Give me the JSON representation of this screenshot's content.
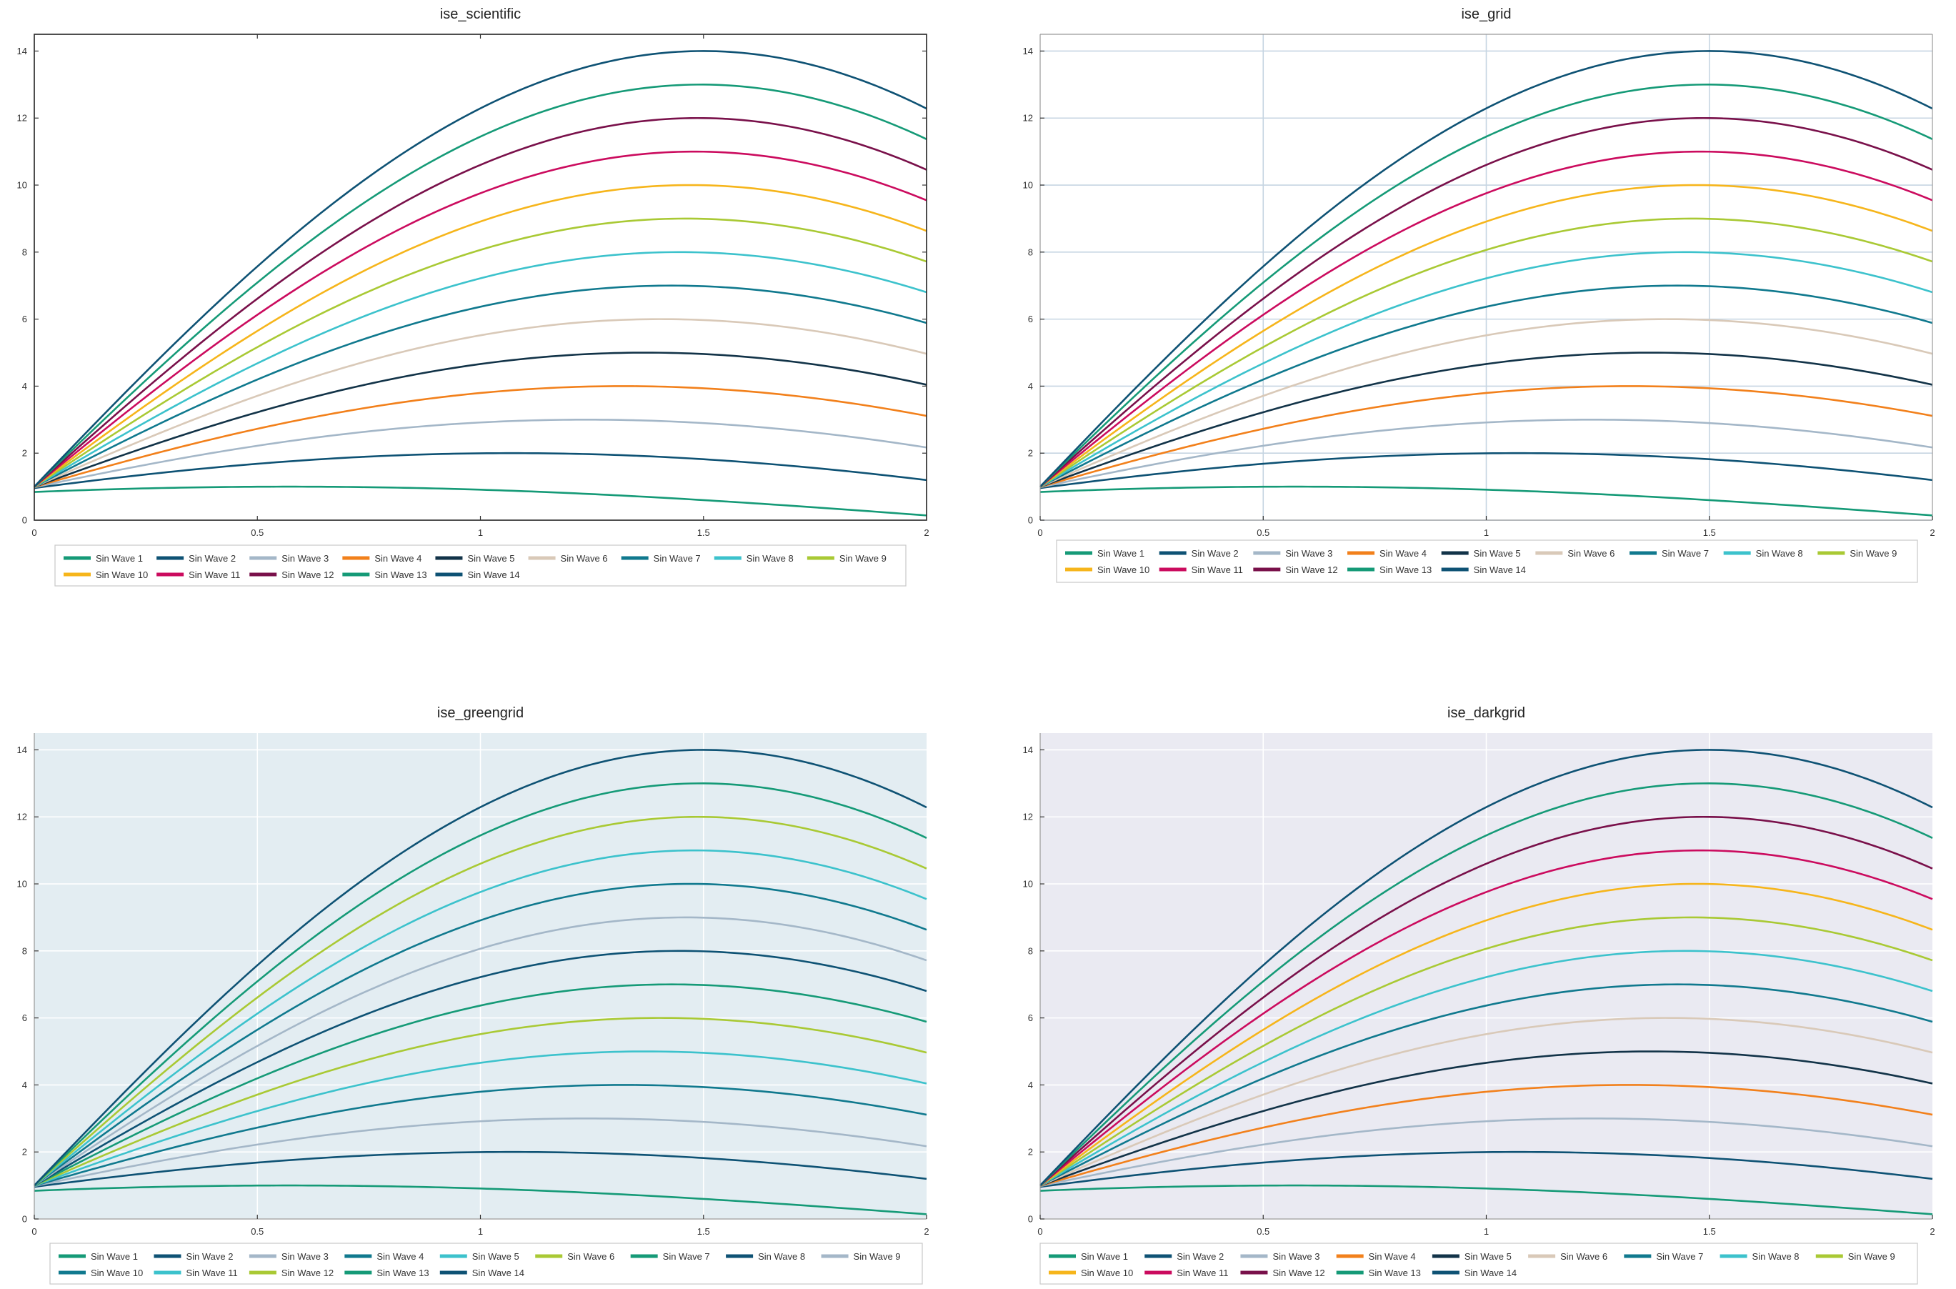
{
  "chart_data": [
    {
      "type": "line",
      "title": "ise_scientific",
      "xlabel": "",
      "ylabel": "",
      "xlim": [
        0,
        2
      ],
      "ylim": [
        0,
        14.5
      ],
      "xticks": [
        "0",
        "0.5",
        "1",
        "1.5",
        "2"
      ],
      "yticks": [
        "0",
        "2",
        "4",
        "6",
        "8",
        "10",
        "12",
        "14"
      ],
      "grid": false,
      "background": "#ffffff",
      "grid_color": "#c9d6e3",
      "function": "y = k * sin(x + 1/k), k = 1..14",
      "legend": {
        "placement": "bottom-left",
        "columns": 9
      },
      "series": [
        {
          "name": "Sin Wave 1",
          "amplitude": 1,
          "color": "#159a77"
        },
        {
          "name": "Sin Wave 2",
          "amplitude": 2,
          "color": "#0e5274"
        },
        {
          "name": "Sin Wave 3",
          "amplitude": 3,
          "color": "#a4b7c8"
        },
        {
          "name": "Sin Wave 4",
          "amplitude": 4,
          "color": "#f2801b"
        },
        {
          "name": "Sin Wave 5",
          "amplitude": 5,
          "color": "#123348"
        },
        {
          "name": "Sin Wave 6",
          "amplitude": 6,
          "color": "#d9c9b8"
        },
        {
          "name": "Sin Wave 7",
          "amplitude": 7,
          "color": "#10798e"
        },
        {
          "name": "Sin Wave 8",
          "amplitude": 8,
          "color": "#3cc2cc"
        },
        {
          "name": "Sin Wave 9",
          "amplitude": 9,
          "color": "#a9c934"
        },
        {
          "name": "Sin Wave 10",
          "amplitude": 10,
          "color": "#f6b51b"
        },
        {
          "name": "Sin Wave 11",
          "amplitude": 11,
          "color": "#cb0b5e"
        },
        {
          "name": "Sin Wave 12",
          "amplitude": 12,
          "color": "#79104a"
        },
        {
          "name": "Sin Wave 13",
          "amplitude": 13,
          "color": "#159a77"
        },
        {
          "name": "Sin Wave 14",
          "amplitude": 14,
          "color": "#0e5274"
        }
      ]
    },
    {
      "type": "line",
      "title": "ise_grid",
      "xlabel": "",
      "ylabel": "",
      "xlim": [
        0,
        2
      ],
      "ylim": [
        0,
        14.5
      ],
      "xticks": [
        "0",
        "0.5",
        "1",
        "1.5",
        "2"
      ],
      "yticks": [
        "0",
        "2",
        "4",
        "6",
        "8",
        "10",
        "12",
        "14"
      ],
      "grid": true,
      "background": "#ffffff",
      "grid_color": "#c6d5e2",
      "function": "y = k * sin(x + 1/k), k = 1..14",
      "legend": {
        "placement": "bottom-left",
        "columns": 9
      },
      "series": [
        {
          "name": "Sin Wave 1",
          "amplitude": 1,
          "color": "#159a77"
        },
        {
          "name": "Sin Wave 2",
          "amplitude": 2,
          "color": "#0e5274"
        },
        {
          "name": "Sin Wave 3",
          "amplitude": 3,
          "color": "#a4b7c8"
        },
        {
          "name": "Sin Wave 4",
          "amplitude": 4,
          "color": "#f2801b"
        },
        {
          "name": "Sin Wave 5",
          "amplitude": 5,
          "color": "#123348"
        },
        {
          "name": "Sin Wave 6",
          "amplitude": 6,
          "color": "#d9c9b8"
        },
        {
          "name": "Sin Wave 7",
          "amplitude": 7,
          "color": "#10798e"
        },
        {
          "name": "Sin Wave 8",
          "amplitude": 8,
          "color": "#3cc2cc"
        },
        {
          "name": "Sin Wave 9",
          "amplitude": 9,
          "color": "#a9c934"
        },
        {
          "name": "Sin Wave 10",
          "amplitude": 10,
          "color": "#f6b51b"
        },
        {
          "name": "Sin Wave 11",
          "amplitude": 11,
          "color": "#cb0b5e"
        },
        {
          "name": "Sin Wave 12",
          "amplitude": 12,
          "color": "#79104a"
        },
        {
          "name": "Sin Wave 13",
          "amplitude": 13,
          "color": "#159a77"
        },
        {
          "name": "Sin Wave 14",
          "amplitude": 14,
          "color": "#0e5274"
        }
      ]
    },
    {
      "type": "line",
      "title": "ise_greengrid",
      "xlabel": "",
      "ylabel": "",
      "xlim": [
        0,
        2
      ],
      "ylim": [
        0,
        14.5
      ],
      "xticks": [
        "0",
        "0.5",
        "1",
        "1.5",
        "2"
      ],
      "yticks": [
        "0",
        "2",
        "4",
        "6",
        "8",
        "10",
        "12",
        "14"
      ],
      "grid": true,
      "background": "#e3edf2",
      "grid_color": "#ffffff",
      "function": "y = k * sin(x + 1/k), k = 1..14",
      "legend": {
        "placement": "bottom-left",
        "columns": 9
      },
      "series": [
        {
          "name": "Sin Wave 1",
          "amplitude": 1,
          "color": "#159a77"
        },
        {
          "name": "Sin Wave 2",
          "amplitude": 2,
          "color": "#0e5274"
        },
        {
          "name": "Sin Wave 3",
          "amplitude": 3,
          "color": "#a4b7c8"
        },
        {
          "name": "Sin Wave 4",
          "amplitude": 4,
          "color": "#10798e"
        },
        {
          "name": "Sin Wave 5",
          "amplitude": 5,
          "color": "#3cc2cc"
        },
        {
          "name": "Sin Wave 6",
          "amplitude": 6,
          "color": "#a9c934"
        },
        {
          "name": "Sin Wave 7",
          "amplitude": 7,
          "color": "#159a77"
        },
        {
          "name": "Sin Wave 8",
          "amplitude": 8,
          "color": "#0e5274"
        },
        {
          "name": "Sin Wave 9",
          "amplitude": 9,
          "color": "#a4b7c8"
        },
        {
          "name": "Sin Wave 10",
          "amplitude": 10,
          "color": "#10798e"
        },
        {
          "name": "Sin Wave 11",
          "amplitude": 11,
          "color": "#3cc2cc"
        },
        {
          "name": "Sin Wave 12",
          "amplitude": 12,
          "color": "#a9c934"
        },
        {
          "name": "Sin Wave 13",
          "amplitude": 13,
          "color": "#159a77"
        },
        {
          "name": "Sin Wave 14",
          "amplitude": 14,
          "color": "#0e5274"
        }
      ]
    },
    {
      "type": "line",
      "title": "ise_darkgrid",
      "xlabel": "",
      "ylabel": "",
      "xlim": [
        0,
        2
      ],
      "ylim": [
        0,
        14.5
      ],
      "xticks": [
        "0",
        "0.5",
        "1",
        "1.5",
        "2"
      ],
      "yticks": [
        "0",
        "2",
        "4",
        "6",
        "8",
        "10",
        "12",
        "14"
      ],
      "grid": true,
      "background": "#eaeaf2",
      "grid_color": "#ffffff",
      "function": "y = k * sin(x + 1/k), k = 1..14",
      "legend": {
        "placement": "bottom-left",
        "columns": 9
      },
      "series": [
        {
          "name": "Sin Wave 1",
          "amplitude": 1,
          "color": "#159a77"
        },
        {
          "name": "Sin Wave 2",
          "amplitude": 2,
          "color": "#0e5274"
        },
        {
          "name": "Sin Wave 3",
          "amplitude": 3,
          "color": "#a4b7c8"
        },
        {
          "name": "Sin Wave 4",
          "amplitude": 4,
          "color": "#f2801b"
        },
        {
          "name": "Sin Wave 5",
          "amplitude": 5,
          "color": "#123348"
        },
        {
          "name": "Sin Wave 6",
          "amplitude": 6,
          "color": "#d9c9b8"
        },
        {
          "name": "Sin Wave 7",
          "amplitude": 7,
          "color": "#10798e"
        },
        {
          "name": "Sin Wave 8",
          "amplitude": 8,
          "color": "#3cc2cc"
        },
        {
          "name": "Sin Wave 9",
          "amplitude": 9,
          "color": "#a9c934"
        },
        {
          "name": "Sin Wave 10",
          "amplitude": 10,
          "color": "#f6b51b"
        },
        {
          "name": "Sin Wave 11",
          "amplitude": 11,
          "color": "#cb0b5e"
        },
        {
          "name": "Sin Wave 12",
          "amplitude": 12,
          "color": "#79104a"
        },
        {
          "name": "Sin Wave 13",
          "amplitude": 13,
          "color": "#159a77"
        },
        {
          "name": "Sin Wave 14",
          "amplitude": 14,
          "color": "#0e5274"
        }
      ]
    }
  ]
}
